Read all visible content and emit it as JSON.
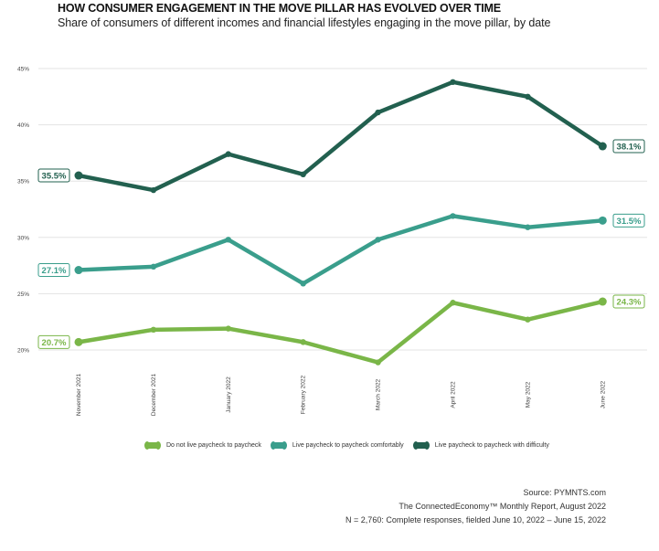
{
  "chart_data": {
    "type": "line",
    "title": "HOW CONSUMER ENGAGEMENT IN THE MOVE PILLAR HAS EVOLVED OVER TIME",
    "subtitle": "Share of consumers of different incomes and financial lifestyles engaging in the move pillar, by date",
    "xlabel": "",
    "ylabel": "",
    "categories": [
      "November 2021",
      "December 2021",
      "January 2022",
      "February 2022",
      "March 2022",
      "April 2022",
      "May 2022",
      "June 2022"
    ],
    "ylim": [
      20,
      45
    ],
    "yticks": [
      20,
      25,
      30,
      35,
      40,
      45
    ],
    "ytick_labels": [
      "20%",
      "25%",
      "30%",
      "35%",
      "40%",
      "45%"
    ],
    "grid": true,
    "legend_position": "bottom",
    "series": [
      {
        "name": "Do not live paycheck to paycheck",
        "color": "#7ab648",
        "values": [
          20.7,
          21.8,
          21.9,
          20.7,
          18.9,
          24.2,
          22.7,
          24.3
        ],
        "labels": {
          "first": "20.7%",
          "last": "24.3%"
        }
      },
      {
        "name": "Live paycheck to paycheck comfortably",
        "color": "#3a9e8c",
        "values": [
          27.1,
          27.4,
          29.8,
          25.9,
          29.8,
          31.9,
          30.9,
          31.5
        ],
        "labels": {
          "first": "27.1%",
          "last": "31.5%"
        }
      },
      {
        "name": "Live paycheck to paycheck with difficulty",
        "color": "#22604f",
        "values": [
          35.5,
          34.2,
          37.4,
          35.6,
          41.1,
          43.8,
          42.5,
          38.1
        ],
        "labels": {
          "first": "35.5%",
          "last": "38.1%"
        }
      }
    ]
  },
  "footer": {
    "source": "Source: PYMNTS.com",
    "report": "The ConnectedEconomy™ Monthly Report, August 2022",
    "sample": "N = 2,760: Complete responses, fielded June 10, 2022 – June 15, 2022"
  }
}
